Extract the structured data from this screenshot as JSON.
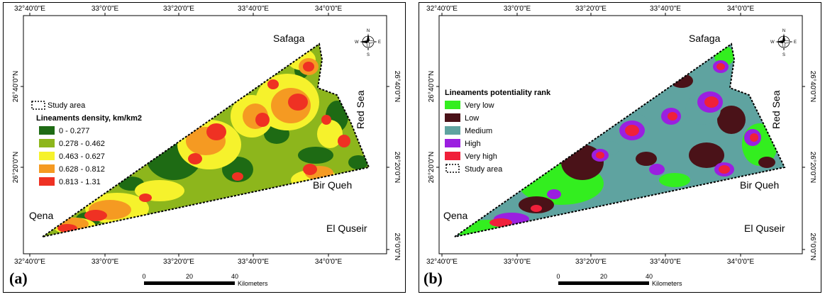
{
  "panels": [
    {
      "letter": "(a)",
      "frame": {
        "top": [
          "32°40'0\"E",
          "33°0'0\"E",
          "33°20'0\"E",
          "33°40'0\"E",
          "34°0'0\"E"
        ],
        "bottom": [
          "32°40'0\"E",
          "33°0'0\"E",
          "33°20'0\"E",
          "33°40'0\"E",
          "34°0'0\"E"
        ],
        "left": [
          "26°40'0\"N",
          "26°20'0\"N"
        ],
        "right": [
          "26°40'0\"N",
          "26°20'0\"N",
          "26°0'0\"N"
        ]
      },
      "places": {
        "safaga": "Safaga",
        "red_sea": "Red Sea",
        "bir_queh": "Bir Queh",
        "qena": "Qena",
        "el_quseir": "El Quseir"
      },
      "legend": {
        "study_area": "Study area",
        "title": "Lineaments density, km/km2",
        "items": [
          {
            "label": "0 - 0.277",
            "color": "#1e6b14"
          },
          {
            "label": "0.278 - 0.462",
            "color": "#8db61c"
          },
          {
            "label": "0.463 - 0.627",
            "color": "#f6f22c"
          },
          {
            "label": "0.628 - 0.812",
            "color": "#f59a22"
          },
          {
            "label": "0.813 - 1.31",
            "color": "#ef3123"
          }
        ]
      },
      "scale": {
        "ticks": [
          "0",
          "20",
          "40"
        ],
        "unit": "Kilometers"
      },
      "compass": {
        "n": "N",
        "s": "S",
        "e": "E",
        "w": "W"
      },
      "base_color": "#8db61c"
    },
    {
      "letter": "(b)",
      "frame": {
        "top": [
          "32°40'0\"E",
          "33°0'0\"E",
          "33°20'0\"E",
          "33°40'0\"E",
          "34°0'0\"E"
        ],
        "bottom": [
          "32°40'0\"E",
          "33°0'0\"E",
          "33°20'0\"E",
          "33°40'0\"E",
          "34°0'0\"E"
        ],
        "left": [
          "26°40'0\"N",
          "26°20'0\"N"
        ],
        "right": [
          "26°40'0\"N",
          "26°20'0\"N",
          "26°0'0\"N"
        ]
      },
      "places": {
        "safaga": "Safaga",
        "red_sea": "Red Sea",
        "bir_queh": "Bir Queh",
        "qena": "Qena",
        "el_quseir": "El Quseir"
      },
      "legend": {
        "study_area": "Study area",
        "title": "Lineaments potentiality rank",
        "items": [
          {
            "label": "Very low",
            "color": "#33ee1f"
          },
          {
            "label": "Low",
            "color": "#4a1218"
          },
          {
            "label": "Medium",
            "color": "#5fa3a0"
          },
          {
            "label": "High",
            "color": "#9b1fe0"
          },
          {
            "label": "Very high",
            "color": "#f0203a"
          }
        ]
      },
      "scale": {
        "ticks": [
          "0",
          "20",
          "40"
        ],
        "unit": "Kilometers"
      },
      "compass": {
        "n": "N",
        "s": "S",
        "e": "E",
        "w": "W"
      },
      "base_color": "#5fa3a0"
    }
  ]
}
